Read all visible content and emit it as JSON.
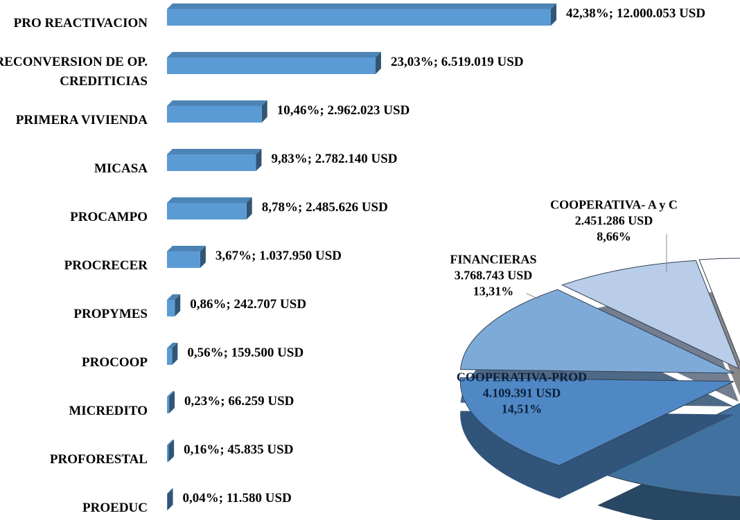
{
  "chart_data": [
    {
      "type": "hbar3d",
      "categories": [
        "PRO REACTIVACION",
        "RECONVERSION DE OP. CREDITICIAS",
        "PRIMERA VIVIENDA",
        "MICASA",
        "PROCAMPO",
        "PROCRECER",
        "PROPYMES",
        "PROCOOP",
        "MICREDITO",
        "PROFORESTAL",
        "PROEDUC"
      ],
      "values": [
        12000053,
        6519019,
        2962023,
        2782140,
        2485626,
        1037950,
        242707,
        159500,
        66259,
        45835,
        11580
      ],
      "value_labels": [
        "42,38%; 12.000.053 USD",
        "23,03%; 6.519.019 USD",
        "10,46%; 2.962.023 USD",
        "9,83%; 2.782.140 USD",
        "8,78%; 2.485.626 USD",
        "3,67%; 1.037.950 USD",
        "0,86%; 242.707 USD",
        "0,56%; 159.500 USD",
        "0,23%; 66.259 USD",
        "0,16%; 45.835 USD",
        "0,04%; 11.580 USD"
      ],
      "color": "#5b9bd5"
    },
    {
      "type": "pie3d",
      "categories": [
        null,
        "COOPERATIVA- A y C",
        "FINANCIERAS",
        "COOPERATIVA-PROD",
        null
      ],
      "values": [
        2.5,
        8.66,
        13.31,
        14.51,
        61.02
      ],
      "value_labels": [
        null,
        "8,66%",
        "13,31%",
        "14,51%",
        null
      ],
      "amount_labels": [
        null,
        "2.451.286 USD",
        "3.768.743 USD",
        "4.109.391 USD",
        null
      ],
      "colors": [
        "#ffffff",
        "#b9cce8",
        "#7eaad8",
        "#4f88c4",
        "#41729f"
      ]
    }
  ]
}
